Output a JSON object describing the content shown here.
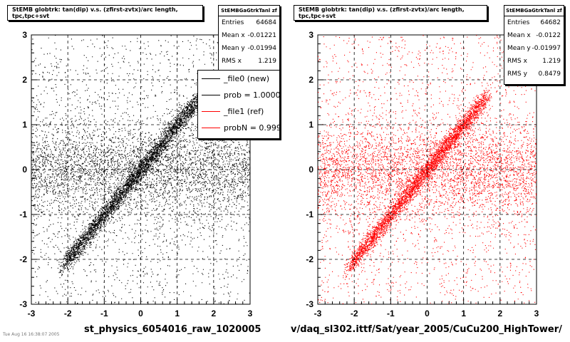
{
  "footer_text": "Tue Aug 16 16:38:07 2005",
  "charts": [
    {
      "title_box": "StEMB globtrk: tan(dip) v.s. (zfirst-zvtx)/arc length, tpc,tpc+svt",
      "stats": {
        "name": "StEMBGaGtrkTanl zf",
        "rows": [
          {
            "label": "Entries",
            "value": "64684"
          },
          {
            "label": "Mean x",
            "value": "-0.01221"
          },
          {
            "label": "Mean y",
            "value": "-0.01994"
          },
          {
            "label": "RMS x",
            "value": "1.219"
          }
        ]
      },
      "legend": [
        {
          "label": "_file0 (new)",
          "color": "#000000"
        },
        {
          "label": "prob = 1.000000",
          "color": "#000000"
        },
        {
          "label": "_file1 (ref)",
          "color": "#ff0000"
        },
        {
          "label": "probN = 0.999999",
          "color": "#ff0000"
        }
      ],
      "xlabel": "st_physics_6054016_raw_1020005"
    },
    {
      "title_box": "StEMB globtrk: tan(dip) v.s. (zfirst-zvtx)/arc length, tpc,tpc+svt",
      "stats": {
        "name": "StEMBGaGtrkTanl zf",
        "rows": [
          {
            "label": "Entries",
            "value": "64682"
          },
          {
            "label": "Mean x",
            "value": "-0.0122"
          },
          {
            "label": "Mean y",
            "value": "-0.01997"
          },
          {
            "label": "RMS x",
            "value": "1.219"
          },
          {
            "label": "RMS y",
            "value": "0.8479"
          }
        ]
      },
      "xlabel": "v/daq_sl302.ittf/Sat/year_2005/CuCu200_HighTower/"
    }
  ],
  "chart_data": [
    {
      "type": "scatter",
      "marker_color": "#000000",
      "xlim": [
        -3,
        3
      ],
      "ylim": [
        -3,
        3
      ],
      "x_ticks": [
        "-3",
        "-2",
        "-1",
        "0",
        "1",
        "2",
        "3"
      ],
      "y_ticks": [
        "-3",
        "-2",
        "-1",
        "0",
        "1",
        "2",
        "3"
      ],
      "grid": true,
      "entries": 64684,
      "mean_x": -0.01221,
      "mean_y": -0.01994,
      "rms_x": 1.219,
      "band_slope": 1.0,
      "band_xrange": [
        -2.1,
        1.6
      ],
      "xlabel": "st_physics_6054016_raw_1020005"
    },
    {
      "type": "scatter",
      "marker_color": "#ff0000",
      "xlim": [
        -3,
        3
      ],
      "ylim": [
        -3,
        3
      ],
      "x_ticks": [
        "-3",
        "-2",
        "-1",
        "0",
        "1",
        "2",
        "3"
      ],
      "y_ticks": [
        "-3",
        "-2",
        "-1",
        "0",
        "1",
        "2",
        "3"
      ],
      "grid": true,
      "entries": 64682,
      "mean_x": -0.0122,
      "mean_y": -0.01997,
      "rms_x": 1.219,
      "rms_y": 0.8479,
      "band_slope": 1.0,
      "band_xrange": [
        -2.1,
        1.6
      ],
      "xlabel": "v/daq_sl302.ittf/Sat/year_2005/CuCu200_HighTower/"
    }
  ]
}
